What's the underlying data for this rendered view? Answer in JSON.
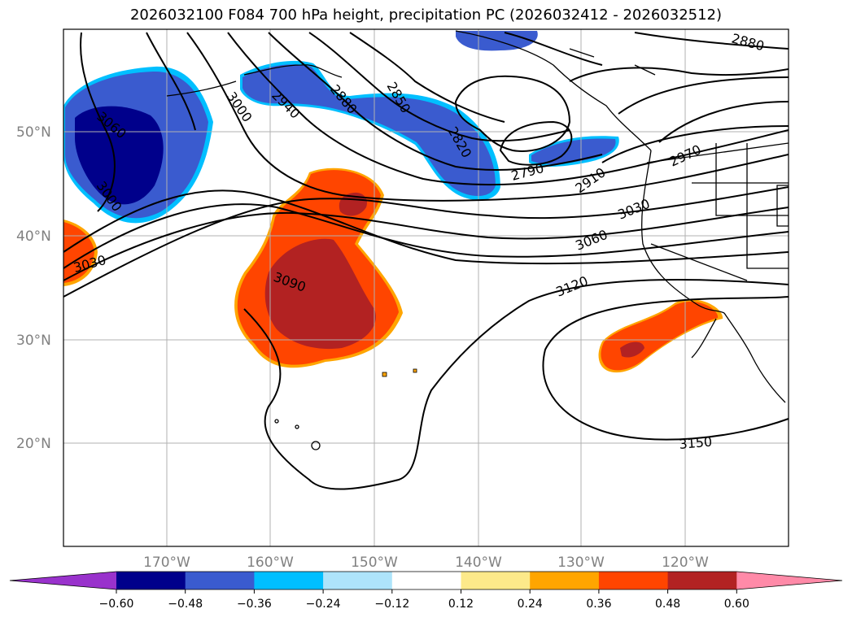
{
  "title": "2026032100 F084 700 hPa height, precipitation PC (2026032412 - 2026032512)",
  "lat_labels": [
    "50°N",
    "40°N",
    "30°N",
    "20°N"
  ],
  "lon_labels": [
    "170°W",
    "160°W",
    "150°W",
    "140°W",
    "130°W",
    "120°W"
  ],
  "contour_labels": [
    "3060",
    "3000",
    "2940",
    "2880",
    "2850",
    "2820",
    "2790",
    "2910",
    "2970",
    "3030",
    "3060",
    "3120",
    "3150",
    "3090",
    "3030",
    "3000",
    "2880"
  ],
  "colorbar": {
    "ticks": [
      "−0.60",
      "−0.48",
      "−0.36",
      "−0.24",
      "−0.12",
      "0.12",
      "0.24",
      "0.36",
      "0.48",
      "0.60"
    ],
    "colors": [
      "#9932cc",
      "#00008b",
      "#3a5bcf",
      "#00bfff",
      "#aee4fb",
      "#ffffff",
      "#fde98a",
      "#ffa500",
      "#ff4500",
      "#b22222",
      "#ff8aa8"
    ]
  },
  "shading_colors": {
    "strong_negative": "#00008b",
    "negative": "#3a5bcf",
    "light_negative": "#00bfff",
    "positive": "#ff4500",
    "strong_positive": "#b22222",
    "light_positive": "#ffa500"
  }
}
